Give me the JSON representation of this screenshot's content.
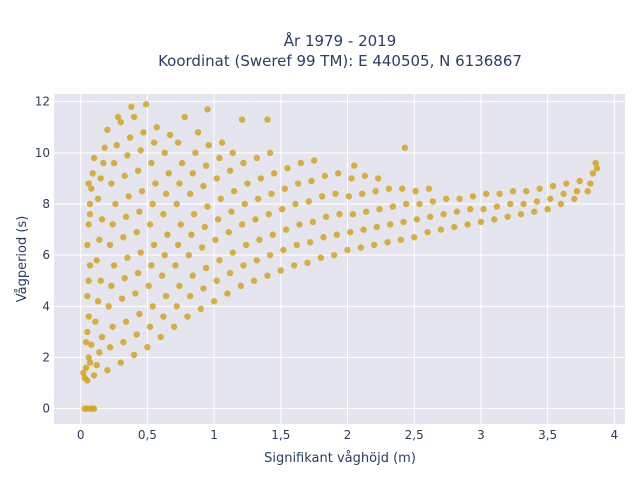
{
  "chart_data": {
    "type": "scatter",
    "title_lines": [
      "År 1979 - 2019",
      "Koordinat (Sweref 99 TM): E 440505, N 6136867"
    ],
    "xlabel": "Signifikant våghöjd (m)",
    "ylabel": "Vågperiod (s)",
    "xlim": [
      -0.2,
      4.08
    ],
    "ylim": [
      -0.6,
      12.3
    ],
    "x_ticks": [
      0,
      0.5,
      1,
      1.5,
      2,
      2.5,
      3,
      3.5,
      4
    ],
    "x_tick_labels": [
      "0",
      "0,5",
      "1",
      "1,5",
      "2",
      "2,5",
      "3",
      "3,5",
      "4"
    ],
    "y_ticks": [
      0,
      2,
      4,
      6,
      8,
      10,
      12
    ],
    "y_tick_labels": [
      "0",
      "2",
      "4",
      "6",
      "8",
      "10",
      "12"
    ],
    "grid": true,
    "marker_color": "#D4A420",
    "background_color": "#E5E5F0",
    "grid_color": "#FFFFFF",
    "series": [
      {
        "points": [
          [
            0.02,
            1.4
          ],
          [
            0.03,
            1.2
          ],
          [
            0.04,
            1.6
          ],
          [
            0.05,
            1.1
          ],
          [
            0.06,
            2.0
          ],
          [
            0.07,
            1.8
          ],
          [
            0.08,
            2.5
          ],
          [
            0.05,
            3.0
          ],
          [
            0.04,
            2.6
          ],
          [
            0.06,
            3.6
          ],
          [
            0.05,
            4.4
          ],
          [
            0.06,
            5.0
          ],
          [
            0.07,
            5.6
          ],
          [
            0.05,
            6.4
          ],
          [
            0.06,
            7.2
          ],
          [
            0.07,
            8.0
          ],
          [
            0.08,
            8.6
          ],
          [
            0.06,
            8.8
          ],
          [
            0.09,
            9.2
          ],
          [
            0.07,
            7.6
          ],
          [
            0.1,
            1.3
          ],
          [
            0.12,
            1.7
          ],
          [
            0.14,
            2.2
          ],
          [
            0.16,
            2.8
          ],
          [
            0.11,
            3.4
          ],
          [
            0.13,
            4.2
          ],
          [
            0.15,
            5.0
          ],
          [
            0.12,
            5.8
          ],
          [
            0.14,
            6.6
          ],
          [
            0.16,
            7.4
          ],
          [
            0.13,
            8.2
          ],
          [
            0.15,
            9.0
          ],
          [
            0.17,
            9.6
          ],
          [
            0.18,
            10.2
          ],
          [
            0.1,
            9.8
          ],
          [
            0.2,
            1.5
          ],
          [
            0.22,
            2.4
          ],
          [
            0.24,
            3.2
          ],
          [
            0.21,
            4.0
          ],
          [
            0.23,
            4.8
          ],
          [
            0.25,
            5.6
          ],
          [
            0.22,
            6.4
          ],
          [
            0.24,
            7.2
          ],
          [
            0.26,
            8.0
          ],
          [
            0.23,
            8.8
          ],
          [
            0.25,
            9.6
          ],
          [
            0.27,
            10.3
          ],
          [
            0.2,
            10.9
          ],
          [
            0.28,
            11.4
          ],
          [
            0.3,
            1.8
          ],
          [
            0.32,
            2.6
          ],
          [
            0.34,
            3.4
          ],
          [
            0.31,
            4.3
          ],
          [
            0.33,
            5.1
          ],
          [
            0.35,
            5.9
          ],
          [
            0.32,
            6.7
          ],
          [
            0.34,
            7.5
          ],
          [
            0.36,
            8.3
          ],
          [
            0.33,
            9.1
          ],
          [
            0.35,
            9.9
          ],
          [
            0.37,
            10.6
          ],
          [
            0.3,
            11.2
          ],
          [
            0.38,
            11.8
          ],
          [
            0.4,
            2.1
          ],
          [
            0.42,
            2.9
          ],
          [
            0.44,
            3.7
          ],
          [
            0.41,
            4.5
          ],
          [
            0.43,
            5.3
          ],
          [
            0.45,
            6.1
          ],
          [
            0.42,
            6.9
          ],
          [
            0.44,
            7.7
          ],
          [
            0.46,
            8.5
          ],
          [
            0.43,
            9.3
          ],
          [
            0.45,
            10.1
          ],
          [
            0.47,
            10.8
          ],
          [
            0.4,
            11.4
          ],
          [
            0.49,
            11.9
          ],
          [
            0.5,
            2.4
          ],
          [
            0.52,
            3.2
          ],
          [
            0.54,
            4.0
          ],
          [
            0.51,
            4.8
          ],
          [
            0.53,
            5.6
          ],
          [
            0.55,
            6.4
          ],
          [
            0.52,
            7.2
          ],
          [
            0.54,
            8.0
          ],
          [
            0.56,
            8.8
          ],
          [
            0.53,
            9.6
          ],
          [
            0.55,
            10.4
          ],
          [
            0.57,
            11.0
          ],
          [
            0.6,
            2.8
          ],
          [
            0.62,
            3.6
          ],
          [
            0.64,
            4.4
          ],
          [
            0.61,
            5.2
          ],
          [
            0.63,
            6.0
          ],
          [
            0.65,
            6.8
          ],
          [
            0.62,
            7.6
          ],
          [
            0.64,
            8.4
          ],
          [
            0.66,
            9.2
          ],
          [
            0.63,
            10.0
          ],
          [
            0.67,
            10.7
          ],
          [
            0.7,
            3.2
          ],
          [
            0.72,
            4.0
          ],
          [
            0.74,
            4.8
          ],
          [
            0.71,
            5.6
          ],
          [
            0.73,
            6.4
          ],
          [
            0.75,
            7.2
          ],
          [
            0.72,
            8.0
          ],
          [
            0.74,
            8.8
          ],
          [
            0.76,
            9.6
          ],
          [
            0.73,
            10.4
          ],
          [
            0.78,
            11.4
          ],
          [
            0.8,
            3.6
          ],
          [
            0.82,
            4.4
          ],
          [
            0.84,
            5.2
          ],
          [
            0.81,
            6.0
          ],
          [
            0.83,
            6.8
          ],
          [
            0.85,
            7.6
          ],
          [
            0.82,
            8.4
          ],
          [
            0.84,
            9.2
          ],
          [
            0.86,
            10.0
          ],
          [
            0.88,
            10.8
          ],
          [
            0.9,
            3.9
          ],
          [
            0.92,
            4.7
          ],
          [
            0.94,
            5.5
          ],
          [
            0.91,
            6.3
          ],
          [
            0.93,
            7.1
          ],
          [
            0.95,
            7.9
          ],
          [
            0.92,
            8.7
          ],
          [
            0.94,
            9.5
          ],
          [
            0.96,
            10.3
          ],
          [
            0.95,
            11.7
          ],
          [
            1.0,
            4.2
          ],
          [
            1.02,
            5.0
          ],
          [
            1.04,
            5.8
          ],
          [
            1.01,
            6.6
          ],
          [
            1.03,
            7.4
          ],
          [
            1.05,
            8.2
          ],
          [
            1.02,
            9.0
          ],
          [
            1.04,
            9.8
          ],
          [
            1.06,
            10.4
          ],
          [
            1.1,
            4.5
          ],
          [
            1.12,
            5.3
          ],
          [
            1.14,
            6.1
          ],
          [
            1.11,
            6.9
          ],
          [
            1.13,
            7.7
          ],
          [
            1.15,
            8.5
          ],
          [
            1.12,
            9.3
          ],
          [
            1.14,
            10.0
          ],
          [
            1.2,
            4.8
          ],
          [
            1.22,
            5.6
          ],
          [
            1.24,
            6.4
          ],
          [
            1.21,
            7.2
          ],
          [
            1.23,
            8.0
          ],
          [
            1.25,
            8.8
          ],
          [
            1.22,
            9.6
          ],
          [
            1.21,
            11.3
          ],
          [
            1.3,
            5.0
          ],
          [
            1.32,
            5.8
          ],
          [
            1.34,
            6.6
          ],
          [
            1.31,
            7.4
          ],
          [
            1.33,
            8.2
          ],
          [
            1.35,
            9.0
          ],
          [
            1.32,
            9.8
          ],
          [
            1.4,
            5.2
          ],
          [
            1.42,
            6.0
          ],
          [
            1.44,
            6.8
          ],
          [
            1.41,
            7.6
          ],
          [
            1.43,
            8.4
          ],
          [
            1.45,
            9.2
          ],
          [
            1.42,
            10.0
          ],
          [
            1.4,
            11.3
          ],
          [
            1.5,
            5.4
          ],
          [
            1.52,
            6.2
          ],
          [
            1.54,
            7.0
          ],
          [
            1.51,
            7.8
          ],
          [
            1.53,
            8.6
          ],
          [
            1.55,
            9.4
          ],
          [
            1.6,
            5.6
          ],
          [
            1.62,
            6.4
          ],
          [
            1.64,
            7.2
          ],
          [
            1.61,
            8.0
          ],
          [
            1.63,
            8.8
          ],
          [
            1.65,
            9.6
          ],
          [
            1.7,
            5.7
          ],
          [
            1.72,
            6.5
          ],
          [
            1.74,
            7.3
          ],
          [
            1.71,
            8.1
          ],
          [
            1.73,
            8.9
          ],
          [
            1.75,
            9.7
          ],
          [
            1.8,
            5.9
          ],
          [
            1.82,
            6.7
          ],
          [
            1.84,
            7.5
          ],
          [
            1.81,
            8.3
          ],
          [
            1.83,
            9.1
          ],
          [
            1.9,
            6.0
          ],
          [
            1.92,
            6.8
          ],
          [
            1.94,
            7.6
          ],
          [
            1.91,
            8.4
          ],
          [
            1.93,
            9.2
          ],
          [
            2.0,
            6.2
          ],
          [
            2.02,
            6.9
          ],
          [
            2.04,
            7.6
          ],
          [
            2.01,
            8.3
          ],
          [
            2.03,
            9.0
          ],
          [
            2.05,
            9.5
          ],
          [
            2.1,
            6.3
          ],
          [
            2.12,
            7.0
          ],
          [
            2.14,
            7.7
          ],
          [
            2.11,
            8.4
          ],
          [
            2.13,
            9.1
          ],
          [
            2.2,
            6.4
          ],
          [
            2.22,
            7.1
          ],
          [
            2.24,
            7.8
          ],
          [
            2.21,
            8.5
          ],
          [
            2.23,
            9.0
          ],
          [
            2.3,
            6.5
          ],
          [
            2.32,
            7.2
          ],
          [
            2.34,
            7.9
          ],
          [
            2.31,
            8.6
          ],
          [
            2.4,
            6.6
          ],
          [
            2.42,
            7.3
          ],
          [
            2.44,
            8.0
          ],
          [
            2.41,
            8.6
          ],
          [
            2.43,
            10.2
          ],
          [
            2.5,
            6.7
          ],
          [
            2.52,
            7.4
          ],
          [
            2.54,
            8.0
          ],
          [
            2.51,
            8.5
          ],
          [
            2.6,
            6.9
          ],
          [
            2.62,
            7.5
          ],
          [
            2.64,
            8.1
          ],
          [
            2.61,
            8.6
          ],
          [
            2.7,
            7.0
          ],
          [
            2.72,
            7.6
          ],
          [
            2.74,
            8.2
          ],
          [
            2.8,
            7.1
          ],
          [
            2.82,
            7.7
          ],
          [
            2.84,
            8.2
          ],
          [
            2.9,
            7.2
          ],
          [
            2.92,
            7.8
          ],
          [
            2.94,
            8.3
          ],
          [
            3.0,
            7.3
          ],
          [
            3.02,
            7.8
          ],
          [
            3.04,
            8.4
          ],
          [
            3.1,
            7.4
          ],
          [
            3.12,
            7.9
          ],
          [
            3.14,
            8.4
          ],
          [
            3.2,
            7.5
          ],
          [
            3.22,
            8.0
          ],
          [
            3.24,
            8.5
          ],
          [
            3.3,
            7.6
          ],
          [
            3.32,
            8.0
          ],
          [
            3.34,
            8.5
          ],
          [
            3.4,
            7.7
          ],
          [
            3.42,
            8.1
          ],
          [
            3.44,
            8.6
          ],
          [
            3.5,
            7.8
          ],
          [
            3.52,
            8.2
          ],
          [
            3.54,
            8.7
          ],
          [
            3.6,
            8.0
          ],
          [
            3.62,
            8.4
          ],
          [
            3.64,
            8.8
          ],
          [
            3.7,
            8.2
          ],
          [
            3.72,
            8.5
          ],
          [
            3.74,
            8.9
          ],
          [
            3.8,
            8.5
          ],
          [
            3.82,
            8.8
          ],
          [
            3.84,
            9.2
          ],
          [
            3.86,
            9.6
          ],
          [
            3.87,
            9.4
          ],
          [
            0.03,
            0
          ],
          [
            0.05,
            0
          ],
          [
            0.07,
            0
          ],
          [
            0.09,
            0
          ],
          [
            0.1,
            0
          ]
        ]
      }
    ]
  }
}
